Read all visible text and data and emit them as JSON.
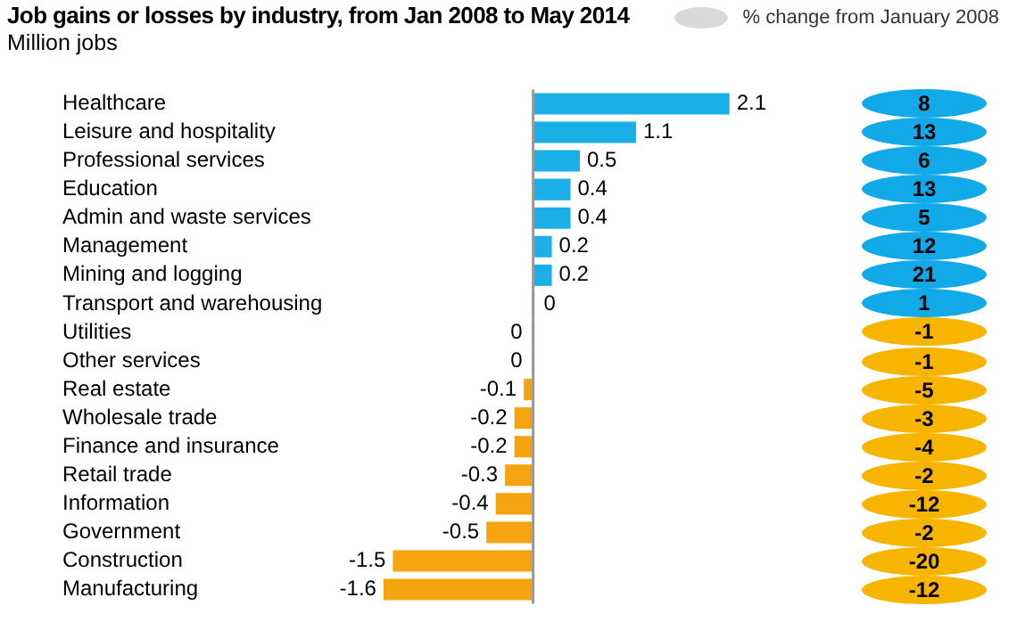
{
  "chart_data": [
    {
      "type": "bar",
      "orientation": "horizontal",
      "title": "Job gains or losses by industry, from Jan 2008 to May 2014",
      "subtitle": "Million jobs",
      "categories": [
        "Healthcare",
        "Leisure and hospitality",
        "Professional services",
        "Education",
        "Admin and waste services",
        "Management",
        "Mining and logging",
        "Transport and warehousing",
        "Utilities",
        "Other services",
        "Real estate",
        "Wholesale trade",
        "Finance and insurance",
        "Retail trade",
        "Information",
        "Government",
        "Construction",
        "Manufacturing"
      ],
      "values": [
        2.1,
        1.1,
        0.5,
        0.4,
        0.4,
        0.2,
        0.2,
        0,
        0,
        0,
        -0.1,
        -0.2,
        -0.2,
        -0.3,
        -0.4,
        -0.5,
        -1.5,
        -1.6
      ],
      "colors": [
        "#1aafe6",
        "#1aafe6",
        "#1aafe6",
        "#1aafe6",
        "#1aafe6",
        "#1aafe6",
        "#1aafe6",
        "#1aafe6",
        "#1aafe6",
        "#1aafe6",
        "#f5a30f",
        "#f5a30f",
        "#f5a30f",
        "#f5a30f",
        "#f5a30f",
        "#f5a30f",
        "#f5a30f",
        "#f5a30f"
      ],
      "tick_labels": "y",
      "data_labels": true
    },
    {
      "type": "other",
      "categories": [
        null,
        null,
        null,
        null,
        null,
        null,
        null,
        null,
        null,
        null,
        null,
        null,
        null,
        null,
        null,
        null,
        null,
        null
      ],
      "series": [
        {
          "name": "% change from January 2008",
          "color": "#d9d9d9",
          "values": [
            8,
            13,
            6,
            13,
            5,
            12,
            21,
            1,
            -1,
            -1,
            -5,
            -3,
            -4,
            -2,
            -12,
            -2,
            -20,
            -12
          ],
          "colors": [
            "#12a9e8",
            "#12a9e8",
            "#12a9e8",
            "#12a9e8",
            "#12a9e8",
            "#12a9e8",
            "#12a9e8",
            "#12a9e8",
            "#f7b500",
            "#f7b500",
            "#f7b500",
            "#f7b500",
            "#f7b500",
            "#f7b500",
            "#f7b500",
            "#f7b500",
            "#f7b500",
            "#f7b500"
          ]
        }
      ],
      "legend": "top right",
      "data_labels": true
    }
  ]
}
